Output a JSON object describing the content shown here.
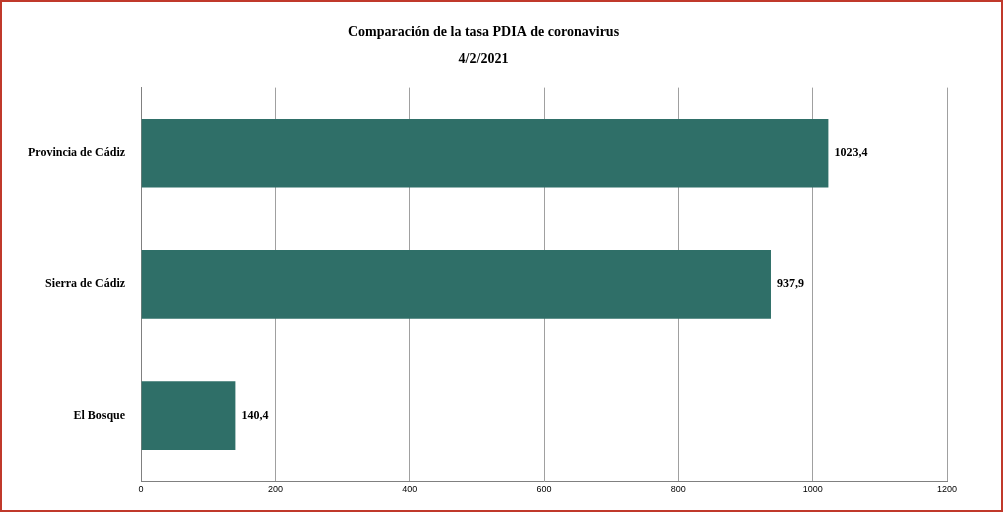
{
  "chart_data": {
    "type": "bar",
    "title": "Comparación de la tasa PDIA de coronavirus",
    "subtitle": "4/2/2021",
    "orientation": "horizontal",
    "categories": [
      "Provincia de Cádiz",
      "Sierra de Cádiz",
      "El Bosque"
    ],
    "values": [
      1023.4,
      937.9,
      140.4
    ],
    "value_labels": [
      "1023,4",
      "937,9",
      "140,4"
    ],
    "data_labels": true,
    "color": "#2f6f68",
    "xlim": [
      0,
      1200
    ],
    "xticks": [
      0,
      200,
      400,
      600,
      800,
      1000,
      1200
    ],
    "grid": true
  }
}
